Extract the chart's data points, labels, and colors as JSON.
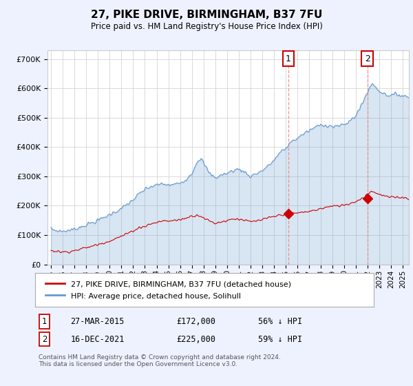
{
  "title": "27, PIKE DRIVE, BIRMINGHAM, B37 7FU",
  "subtitle": "Price paid vs. HM Land Registry's House Price Index (HPI)",
  "red_label": "27, PIKE DRIVE, BIRMINGHAM, B37 7FU (detached house)",
  "blue_label": "HPI: Average price, detached house, Solihull",
  "annotation1": {
    "label": "1",
    "date": "27-MAR-2015",
    "price": "£172,000",
    "pct": "56% ↓ HPI",
    "x_year": 2015.23,
    "y_val": 172000
  },
  "annotation2": {
    "label": "2",
    "date": "16-DEC-2021",
    "price": "£225,000",
    "pct": "59% ↓ HPI",
    "x_year": 2021.96,
    "y_val": 225000
  },
  "footer": "Contains HM Land Registry data © Crown copyright and database right 2024.\nThis data is licensed under the Open Government Licence v3.0.",
  "ylim": [
    0,
    730000
  ],
  "xlim": [
    1994.7,
    2025.5
  ],
  "yticks": [
    0,
    100000,
    200000,
    300000,
    400000,
    500000,
    600000,
    700000
  ],
  "ytick_labels": [
    "£0",
    "£100K",
    "£200K",
    "£300K",
    "£400K",
    "£500K",
    "£600K",
    "£700K"
  ],
  "xticks": [
    1995,
    1996,
    1997,
    1998,
    1999,
    2000,
    2001,
    2002,
    2003,
    2004,
    2005,
    2006,
    2007,
    2008,
    2009,
    2010,
    2011,
    2012,
    2013,
    2014,
    2015,
    2016,
    2017,
    2018,
    2019,
    2020,
    2021,
    2022,
    2023,
    2024,
    2025
  ],
  "bg_color": "#eef2ff",
  "plot_bg_color": "#ffffff",
  "grid_color": "#cccccc",
  "red_color": "#cc0000",
  "blue_color": "#6699cc",
  "blue_fill_color": "#ddeeff",
  "dashed_color": "#ee8888"
}
